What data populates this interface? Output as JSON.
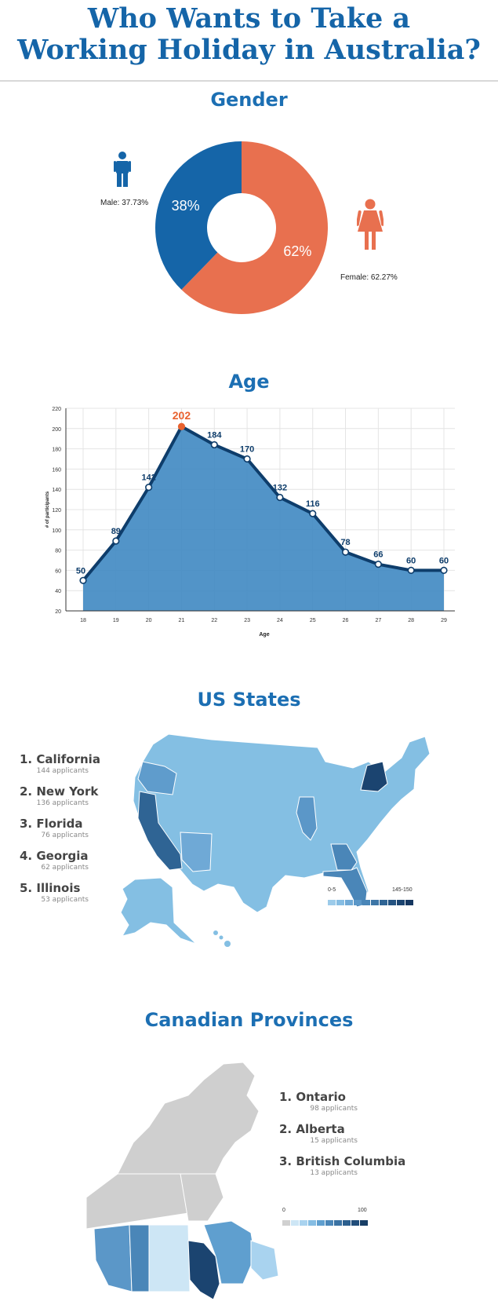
{
  "title_lines": [
    "Who Wants to Take a",
    "Working Holiday in Australia?"
  ],
  "sections": {
    "gender": "Gender",
    "age": "Age",
    "us": "US States",
    "canada": "Canadian Provinces"
  },
  "colors": {
    "male": "#1565a8",
    "female": "#e8704f",
    "line": "#0e3d6b",
    "area": "#3f88c2",
    "peak": "#e8622f"
  },
  "icons": [
    "male-figure-icon",
    "female-figure-icon"
  ],
  "chart_data": [
    {
      "type": "pie",
      "donut": true,
      "slices": [
        {
          "name": "Female",
          "value": 62.27,
          "label": "62%",
          "side_label": "Female: 62.27%"
        },
        {
          "name": "Male",
          "value": 37.73,
          "label": "38%",
          "side_label": "Male: 37.73%"
        }
      ]
    },
    {
      "type": "area",
      "x": [
        18,
        19,
        20,
        21,
        22,
        23,
        24,
        25,
        26,
        27,
        28,
        29
      ],
      "values": [
        50,
        89,
        142,
        202,
        184,
        170,
        132,
        116,
        78,
        66,
        60,
        60
      ],
      "data_labels": [
        "50",
        "89",
        "142",
        "202",
        "184",
        "170",
        "132",
        "116",
        "78",
        "66",
        "60",
        "60"
      ],
      "highlight_index": 3,
      "xlabel": "Age",
      "ylabel": "# of participants",
      "ylim": [
        20,
        220
      ],
      "yticks": [
        20,
        40,
        60,
        80,
        100,
        120,
        140,
        160,
        180,
        200,
        220
      ],
      "grid": true
    }
  ],
  "us_states": {
    "ranking": [
      {
        "name": "1. California",
        "count": "144 applicants"
      },
      {
        "name": "2. New York",
        "count": "136 applicants"
      },
      {
        "name": "3. Florida",
        "count": "76 applicants"
      },
      {
        "name": "4. Georgia",
        "count": "62 applicants"
      },
      {
        "name": "5. Illinois",
        "count": "53 applicants"
      }
    ],
    "legend": {
      "min": "0-5",
      "max": "145-150"
    },
    "scale_colors": [
      "#9ccbea",
      "#86bde3",
      "#6fa9d6",
      "#5b97c8",
      "#4a86b8",
      "#3c75a6",
      "#2f6494",
      "#245381",
      "#1b4470",
      "#153760"
    ]
  },
  "canada": {
    "ranking": [
      {
        "name": "1. Ontario",
        "count": "98 applicants"
      },
      {
        "name": "2. Alberta",
        "count": "15 applicants"
      },
      {
        "name": "3. British Columbia",
        "count": "13 applicants"
      }
    ],
    "legend": {
      "min": "0",
      "max": "100"
    },
    "scale_colors": [
      "#d0d0d0",
      "#cde6f5",
      "#a9d3ef",
      "#85bde3",
      "#5f9fcf",
      "#4a86b8",
      "#3a72a3",
      "#2c5f8e",
      "#214d79",
      "#183e65"
    ]
  }
}
